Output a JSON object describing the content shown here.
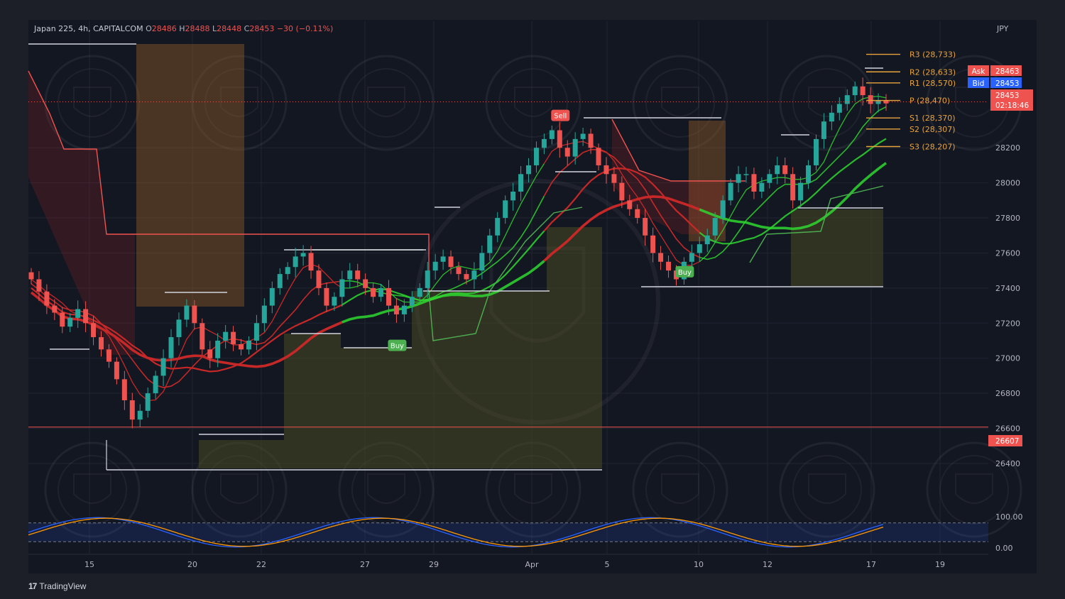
{
  "header": {
    "symbol": "Japan 225, 4h, CAPITALCOM",
    "open_label": "O",
    "open": "28486",
    "high_label": "H",
    "high": "28488",
    "low_label": "L",
    "low": "28448",
    "close_label": "C",
    "close": "28453",
    "change": "−30 (−0.11%)"
  },
  "currency": "JPY",
  "branding": {
    "logo": "tradingview-logo",
    "text": "TradingView"
  },
  "colors": {
    "background": "#131722",
    "up": "#26a69a",
    "down": "#ef5350",
    "bull_band": "#2fd72f",
    "bear_band": "#c62828",
    "pivot": "#e8a33d",
    "ask": "#ef5350",
    "bid": "#2962ff"
  },
  "chart_data": {
    "type": "candlestick",
    "title": "",
    "price_axis": {
      "ticks": [
        "26400",
        "26600",
        "26800",
        "27000",
        "27200",
        "27400",
        "27600",
        "27800",
        "28000",
        "28200"
      ],
      "range": [
        26250,
        28800
      ]
    },
    "time_axis": {
      "ticks": [
        "15",
        "20",
        "22",
        "27",
        "29",
        "Apr",
        "5",
        "10",
        "12",
        "17",
        "19"
      ]
    },
    "pivot_levels": [
      {
        "label": "R3 (28,733)",
        "value": 28733
      },
      {
        "label": "R2 (28,633)",
        "value": 28633
      },
      {
        "label": "R1 (28,570)",
        "value": 28570
      },
      {
        "label": "P (28,470)",
        "value": 28470
      },
      {
        "label": "S1 (28,370)",
        "value": 28370
      },
      {
        "label": "S2 (28,307)",
        "value": 28307
      },
      {
        "label": "S3 (28,207)",
        "value": 28207
      }
    ],
    "price_tags": {
      "ask_label": "Ask",
      "ask": "28463",
      "bid_label": "Bid",
      "bid": "28453",
      "last": "28453",
      "countdown": "02:18:46",
      "level": "26607"
    },
    "horizontal_line": 26607,
    "signals": [
      {
        "label": "Sell",
        "index": 68,
        "price": 28320
      },
      {
        "label": "Buy",
        "index": 47,
        "price": 27130
      },
      {
        "label": "Buy",
        "index": 84,
        "price": 27550
      }
    ],
    "stochastic": {
      "ticks": [
        "100.00",
        "0.00"
      ],
      "band": [
        20,
        80
      ]
    },
    "close_path": [
      27450,
      27380,
      27300,
      27260,
      27180,
      27230,
      27280,
      27200,
      27120,
      27050,
      26980,
      26880,
      26760,
      26650,
      26700,
      26800,
      26900,
      27000,
      27120,
      27220,
      27300,
      27200,
      27050,
      27000,
      27100,
      27150,
      27080,
      27050,
      27100,
      27200,
      27300,
      27400,
      27480,
      27520,
      27580,
      27600,
      27500,
      27400,
      27300,
      27350,
      27450,
      27500,
      27450,
      27400,
      27350,
      27400,
      27300,
      27250,
      27300,
      27350,
      27400,
      27500,
      27550,
      27580,
      27520,
      27480,
      27450,
      27500,
      27600,
      27700,
      27800,
      27900,
      27950,
      28050,
      28100,
      28200,
      28250,
      28300,
      28200,
      28150,
      28250,
      28280,
      28200,
      28100,
      28050,
      28000,
      27900,
      27850,
      27800,
      27700,
      27600,
      27550,
      27500,
      27450,
      27550,
      27600,
      27650,
      27700,
      27800,
      27900,
      28000,
      28050,
      28050,
      27950,
      28000,
      28050,
      28100,
      28050,
      27900,
      28000,
      28100,
      28250,
      28350,
      28400,
      28450,
      28500,
      28550,
      28500,
      28450,
      28470,
      28453
    ]
  }
}
